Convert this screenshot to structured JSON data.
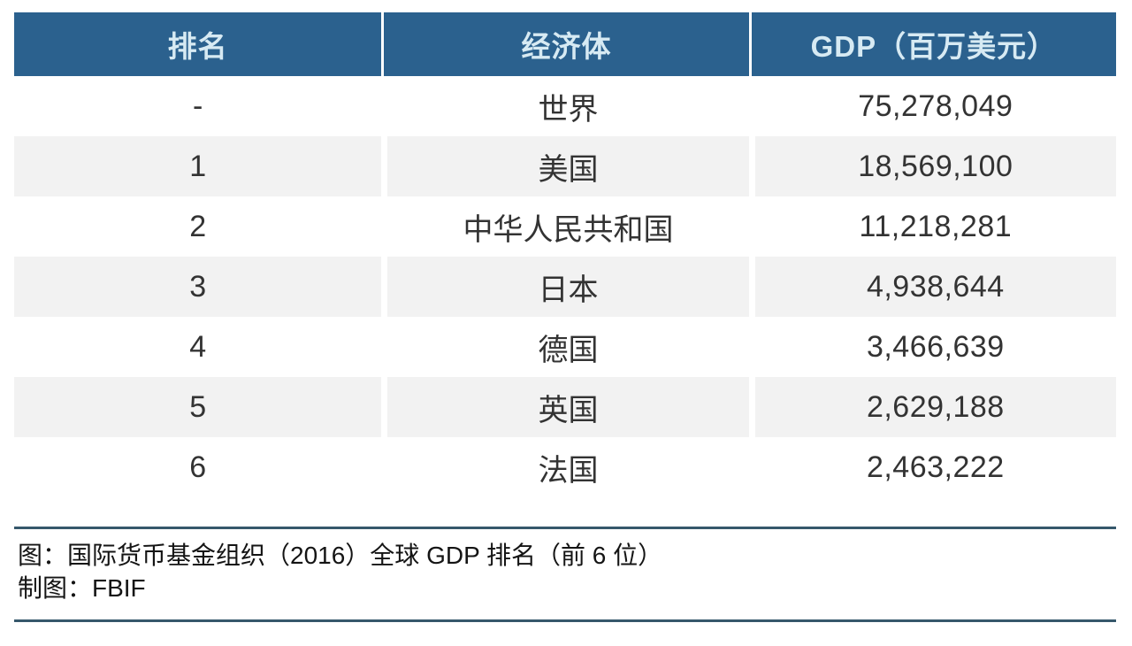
{
  "colors": {
    "header_bg": "#2B618E",
    "header_text": "#D7EAF3",
    "row_alt_bg": "#F2F2F2",
    "body_text": "#333333",
    "separator_line": "#36586B"
  },
  "table": {
    "columns": [
      "排名",
      "经济体",
      "GDP（百万美元）"
    ],
    "rows": [
      {
        "rank": "-",
        "economy": "世界",
        "gdp": "75,278,049"
      },
      {
        "rank": "1",
        "economy": "美国",
        "gdp": "18,569,100"
      },
      {
        "rank": "2",
        "economy": "中华人民共和国",
        "gdp": "11,218,281"
      },
      {
        "rank": "3",
        "economy": "日本",
        "gdp": "4,938,644"
      },
      {
        "rank": "4",
        "economy": "德国",
        "gdp": "3,466,639"
      },
      {
        "rank": "5",
        "economy": "英国",
        "gdp": "2,629,188"
      },
      {
        "rank": "6",
        "economy": "法国",
        "gdp": "2,463,222"
      }
    ]
  },
  "footer": {
    "caption": "图：国际货币基金组织（2016）全球 GDP 排名（前 6 位）",
    "credit": "制图：FBIF"
  },
  "chart_data": {
    "type": "table",
    "title": "国际货币基金组织（2016）全球 GDP 排名（前 6 位）",
    "source": "FBIF",
    "columns": [
      "排名",
      "经济体",
      "GDP（百万美元）"
    ],
    "rows": [
      [
        "-",
        "世界",
        75278049
      ],
      [
        "1",
        "美国",
        18569100
      ],
      [
        "2",
        "中华人民共和国",
        11218281
      ],
      [
        "3",
        "日本",
        4938644
      ],
      [
        "4",
        "德国",
        3466639
      ],
      [
        "5",
        "英国",
        2629188
      ],
      [
        "6",
        "法国",
        2463222
      ]
    ]
  }
}
